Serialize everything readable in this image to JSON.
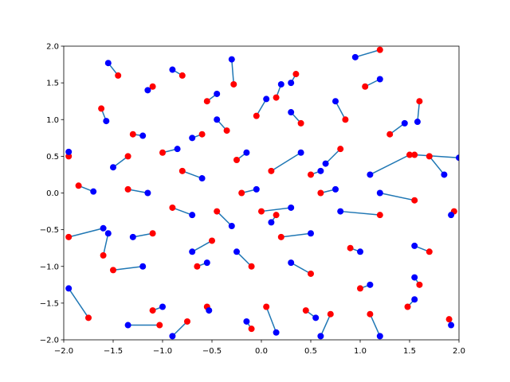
{
  "chart_data": {
    "type": "scatter",
    "line_color": "#1f77b4",
    "series": [
      {
        "color": "red",
        "x": [
          -1.45,
          -0.28,
          1.6,
          -1.62,
          -1.95,
          -1.85,
          -1.95,
          -1.6,
          -1.5,
          -1.75,
          -1.1,
          -1.03,
          -0.75,
          -0.55,
          -0.1,
          0.05,
          0.45,
          0.7,
          1.1,
          1.48,
          1.9,
          1.6,
          1.7,
          1.95,
          1.55,
          1.7,
          1.5,
          1.55,
          1.2,
          0.9,
          1.0,
          0.5,
          0.2,
          0.0,
          0.1,
          0.4,
          0.85,
          1.05,
          1.2,
          0.35,
          0.15,
          -0.05,
          -0.35,
          -0.55,
          -0.8,
          -1.1,
          -1.3,
          -1.0,
          -0.8,
          -1.35,
          -1.35,
          -0.9,
          -1.1,
          -0.5,
          -0.45,
          -0.2,
          -0.1,
          0.15,
          0.6,
          0.8,
          -0.65,
          -0.25,
          0.5,
          1.3,
          -0.6
        ],
        "y": [
          1.6,
          1.48,
          1.25,
          1.15,
          0.5,
          0.1,
          -0.6,
          -0.85,
          -1.05,
          -1.7,
          -1.6,
          -1.8,
          -1.75,
          -1.55,
          -1.85,
          -1.55,
          -1.6,
          -1.65,
          -1.65,
          -1.55,
          -1.72,
          -1.25,
          -0.8,
          -0.25,
          0.52,
          0.5,
          0.52,
          -0.1,
          -0.3,
          -0.75,
          -1.3,
          -1.1,
          -0.6,
          -0.25,
          0.3,
          0.95,
          1.0,
          1.45,
          1.95,
          1.62,
          1.3,
          1.05,
          0.85,
          1.25,
          1.6,
          1.45,
          0.8,
          0.55,
          0.3,
          0.5,
          0.05,
          -0.2,
          -0.55,
          -0.65,
          -0.25,
          0.0,
          -1.0,
          -0.3,
          0.0,
          0.6,
          -1.0,
          0.45,
          0.25,
          0.8,
          0.8
        ]
      },
      {
        "color": "blue",
        "x": [
          -1.55,
          -0.3,
          1.58,
          -1.57,
          -1.95,
          -1.7,
          -1.6,
          -1.55,
          -1.2,
          -1.95,
          -1.0,
          -1.35,
          -0.9,
          -0.53,
          -0.15,
          0.15,
          0.55,
          0.6,
          1.2,
          1.55,
          1.92,
          1.55,
          1.55,
          1.92,
          2.0,
          1.85,
          1.1,
          1.2,
          0.8,
          1.0,
          1.1,
          0.3,
          0.5,
          0.3,
          0.4,
          0.3,
          0.75,
          1.2,
          0.95,
          0.3,
          0.2,
          0.05,
          -0.45,
          -0.45,
          -0.9,
          -1.15,
          -1.2,
          -0.85,
          -0.6,
          -1.5,
          -1.15,
          -0.7,
          -1.3,
          -0.7,
          -0.3,
          -0.05,
          -0.25,
          0.1,
          0.75,
          0.65,
          -0.55,
          -0.15,
          0.6,
          1.45,
          -0.7
        ],
        "y": [
          1.77,
          1.82,
          0.97,
          0.98,
          0.56,
          0.02,
          -0.48,
          -0.55,
          -1.0,
          -1.3,
          -1.55,
          -1.8,
          -1.95,
          -1.6,
          -1.75,
          -1.9,
          -1.7,
          -1.95,
          -1.95,
          -1.45,
          -1.8,
          -1.15,
          -0.72,
          -0.3,
          0.48,
          0.25,
          0.25,
          0.0,
          -0.25,
          -0.8,
          -1.25,
          -0.95,
          -0.55,
          -0.2,
          0.55,
          1.1,
          1.25,
          1.55,
          1.85,
          1.5,
          1.48,
          1.28,
          1.0,
          1.35,
          1.68,
          1.4,
          0.78,
          0.6,
          0.2,
          0.35,
          0.0,
          -0.3,
          -0.6,
          -0.8,
          -0.45,
          0.05,
          -0.8,
          -0.4,
          0.05,
          0.4,
          -0.95,
          0.55,
          0.3,
          0.95,
          0.75
        ]
      }
    ],
    "xlim": [
      -2,
      2
    ],
    "xticks": [
      {
        "value": -2,
        "label": "−2.0"
      },
      {
        "value": -1.5,
        "label": "−1.5"
      },
      {
        "value": -1,
        "label": "−1.0"
      },
      {
        "value": -0.5,
        "label": "−0.5"
      },
      {
        "value": 0,
        "label": "0.0"
      },
      {
        "value": 0.5,
        "label": "0.5"
      },
      {
        "value": 1,
        "label": "1.0"
      },
      {
        "value": 1.5,
        "label": "1.5"
      },
      {
        "value": 2,
        "label": "2.0"
      }
    ],
    "ylim": [
      -2,
      2
    ],
    "yticks": [
      {
        "value": -2,
        "label": "−2.0"
      },
      {
        "value": -1.5,
        "label": "−1.5"
      },
      {
        "value": -1,
        "label": "−1.0"
      },
      {
        "value": -0.5,
        "label": "−0.5"
      },
      {
        "value": 0,
        "label": "0.0"
      },
      {
        "value": 0.5,
        "label": "0.5"
      },
      {
        "value": 1,
        "label": "1.0"
      },
      {
        "value": 1.5,
        "label": "1.5"
      },
      {
        "value": 2,
        "label": "2.0"
      }
    ],
    "grid": false
  }
}
